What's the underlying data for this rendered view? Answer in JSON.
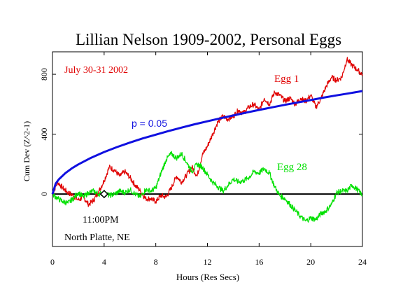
{
  "chart_data": {
    "type": "line",
    "title": "Lillian Nelson 1909-2002, Personal Eggs",
    "xlabel": "Hours (Res Secs)",
    "ylabel": "Cum Dev (Z^2-1)",
    "xlim": [
      0,
      24
    ],
    "ylim": [
      -350,
      950
    ],
    "x_ticks": [
      0,
      4,
      8,
      12,
      16,
      20,
      24
    ],
    "y_ticks": [
      0,
      400,
      800
    ],
    "grid": false,
    "annotations": {
      "date": "July 30-31 2002",
      "time_marker_label": "11:00PM",
      "time_marker_x": 4,
      "location": "North Platte, NE"
    },
    "series": [
      {
        "name": "Egg 1",
        "color": "#e00000",
        "x": [
          0,
          0.4,
          0.8,
          1.2,
          1.6,
          2.0,
          2.4,
          2.8,
          3.2,
          3.6,
          4.0,
          4.4,
          4.8,
          5.2,
          5.6,
          6.0,
          6.4,
          6.8,
          7.2,
          7.6,
          8.0,
          8.4,
          8.8,
          9.2,
          9.6,
          10.0,
          10.4,
          10.8,
          11.2,
          11.6,
          12.0,
          12.4,
          12.8,
          13.2,
          13.6,
          14.0,
          14.4,
          14.8,
          15.2,
          15.6,
          16.0,
          16.4,
          16.8,
          17.2,
          17.6,
          18.0,
          18.4,
          18.8,
          19.2,
          19.6,
          20.0,
          20.4,
          20.8,
          21.2,
          21.6,
          22.0,
          22.4,
          22.8,
          23.2,
          23.6,
          24.0
        ],
        "y": [
          0,
          80,
          40,
          10,
          -10,
          -40,
          -20,
          -70,
          -40,
          20,
          90,
          180,
          160,
          120,
          150,
          110,
          60,
          20,
          -30,
          -30,
          -50,
          -10,
          -20,
          40,
          120,
          80,
          130,
          180,
          120,
          260,
          320,
          400,
          480,
          520,
          500,
          520,
          560,
          540,
          580,
          600,
          560,
          640,
          600,
          680,
          660,
          620,
          640,
          600,
          640,
          620,
          660,
          580,
          640,
          720,
          780,
          760,
          780,
          900,
          860,
          830,
          800
        ]
      },
      {
        "name": "Egg 28",
        "color": "#00e000",
        "x": [
          0,
          0.4,
          0.8,
          1.2,
          1.6,
          2.0,
          2.4,
          2.8,
          3.2,
          3.6,
          4.0,
          4.4,
          4.8,
          5.2,
          5.6,
          6.0,
          6.4,
          6.8,
          7.2,
          7.6,
          8.0,
          8.4,
          8.8,
          9.2,
          9.6,
          10.0,
          10.4,
          10.8,
          11.2,
          11.6,
          12.0,
          12.4,
          12.8,
          13.2,
          13.6,
          14.0,
          14.4,
          14.8,
          15.2,
          15.6,
          16.0,
          16.4,
          16.8,
          17.2,
          17.6,
          18.0,
          18.4,
          18.8,
          19.2,
          19.6,
          20.0,
          20.4,
          20.8,
          21.2,
          21.6,
          22.0,
          22.4,
          22.8,
          23.2,
          23.6,
          24.0
        ],
        "y": [
          0,
          -30,
          -50,
          -60,
          -30,
          10,
          -20,
          10,
          20,
          0,
          10,
          -10,
          0,
          20,
          10,
          30,
          0,
          -20,
          30,
          20,
          40,
          140,
          230,
          270,
          240,
          270,
          210,
          150,
          200,
          180,
          130,
          80,
          50,
          20,
          60,
          100,
          80,
          90,
          110,
          150,
          140,
          170,
          140,
          50,
          -10,
          -30,
          -70,
          -110,
          -150,
          -180,
          -160,
          -170,
          -130,
          -110,
          -70,
          10,
          20,
          20,
          60,
          30,
          -10
        ]
      },
      {
        "name": "p = 0.05",
        "color": "#1010e0",
        "x": [
          0,
          0.25,
          0.5,
          1,
          1.5,
          2,
          3,
          4,
          5,
          6,
          7,
          8,
          9,
          10,
          11,
          12,
          13,
          14,
          15,
          16,
          17,
          18,
          19,
          20,
          21,
          22,
          23,
          24
        ],
        "y": [
          0,
          70,
          99,
          140,
          172,
          198,
          243,
          281,
          314,
          344,
          372,
          397,
          421,
          444,
          466,
          486,
          506,
          525,
          544,
          562,
          579,
          596,
          612,
          628,
          644,
          659,
          673,
          688
        ]
      }
    ],
    "baseline_y": 0
  }
}
